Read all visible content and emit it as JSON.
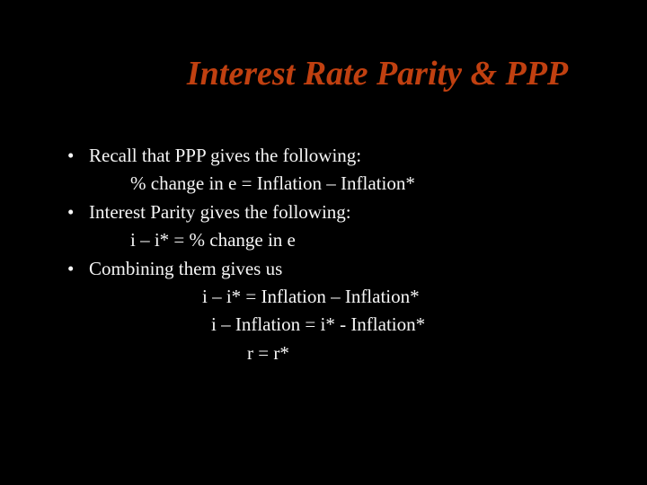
{
  "slide": {
    "title": "Interest Rate Parity & PPP",
    "title_color": "#c04010",
    "title_fontsize": 38,
    "title_style": "italic",
    "background_color": "#000000",
    "text_color": "#f5f5f5",
    "body_fontsize": 21,
    "font_family": "Times New Roman",
    "bullets": [
      {
        "text": "Recall that PPP gives the following:",
        "sublines": [
          {
            "text": "% change in e = Inflation – Inflation*",
            "indent": 1
          }
        ]
      },
      {
        "text": "Interest Parity gives the following:",
        "sublines": [
          {
            "text": "i – i* = % change in e",
            "indent": 1
          }
        ]
      },
      {
        "text": "Combining them gives us",
        "sublines": [
          {
            "text": "i – i* = Inflation – Inflation*",
            "indent": 2
          },
          {
            "text": "i – Inflation =  i* - Inflation*",
            "indent": 2.1
          },
          {
            "text": "r = r*",
            "indent": 3
          }
        ]
      }
    ]
  }
}
